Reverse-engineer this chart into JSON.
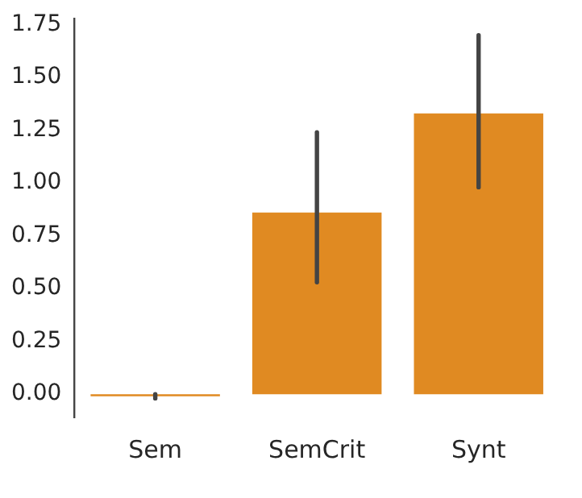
{
  "chart_data": {
    "type": "bar",
    "categories": [
      "Sem",
      "SemCrit",
      "Synt"
    ],
    "values": [
      -0.01,
      0.86,
      1.33
    ],
    "errors": [
      [
        -0.02,
        0.0
      ],
      [
        0.53,
        1.24
      ],
      [
        0.98,
        1.7
      ]
    ],
    "color": "#e08a22",
    "ylim": [
      -0.11,
      1.78
    ],
    "yticks": [
      {
        "value": 0,
        "label": "0.00"
      },
      {
        "value": 0.25,
        "label": "0.25"
      },
      {
        "value": 0.5,
        "label": "0.50"
      },
      {
        "value": 0.75,
        "label": "0.75"
      },
      {
        "value": 1,
        "label": "1.00"
      },
      {
        "value": 1.25,
        "label": "1.25"
      },
      {
        "value": 1.5,
        "label": "1.50"
      },
      {
        "value": 1.75,
        "label": "1.75"
      }
    ],
    "grid": false,
    "legend": false
  }
}
